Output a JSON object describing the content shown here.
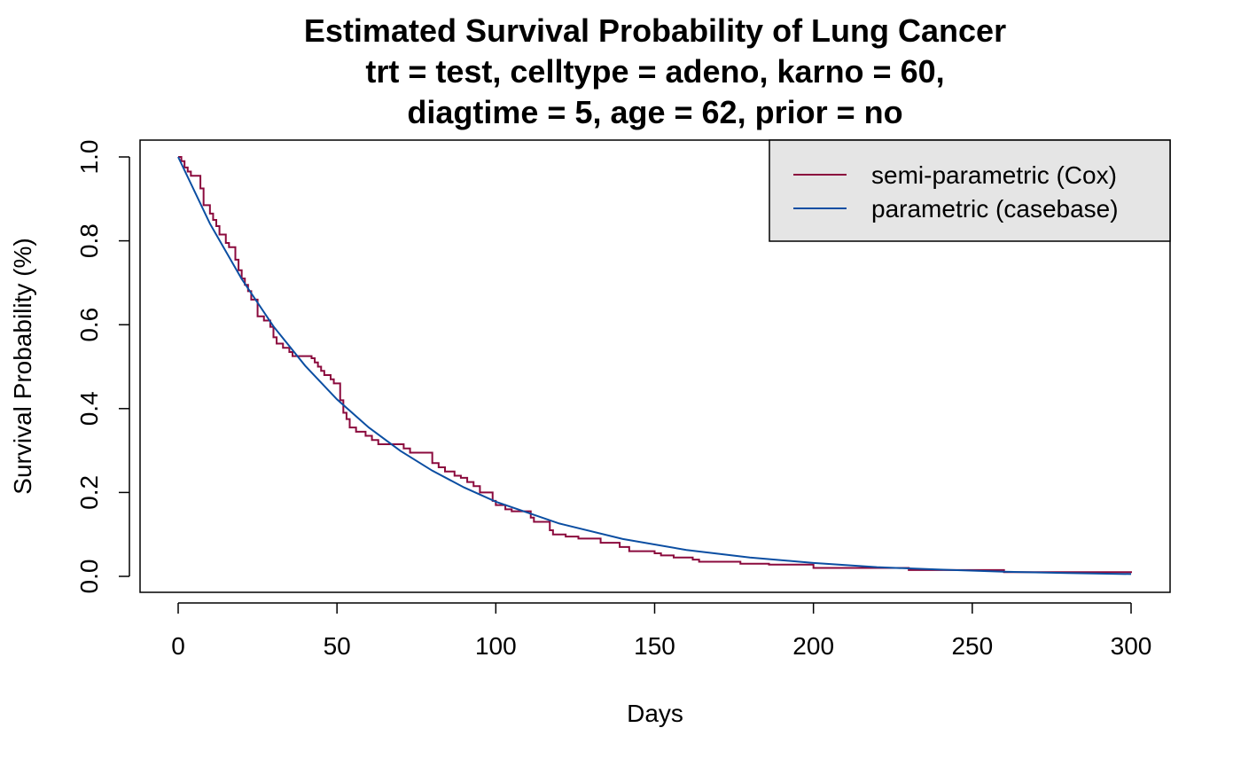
{
  "chart_data": {
    "type": "line",
    "title": "Estimated Survival Probability of Lung Cancer",
    "subtitle_lines": [
      "trt = test, celltype = adeno, karno = 60,",
      "diagtime = 5, age = 62, prior = no"
    ],
    "xlabel": "Days",
    "ylabel": "Survival Probability (%)",
    "xlim": [
      0,
      300
    ],
    "ylim": [
      0,
      1
    ],
    "x_ticks": [
      0,
      50,
      100,
      150,
      200,
      250,
      300
    ],
    "x_tick_labels": [
      "0",
      "50",
      "100",
      "150",
      "200",
      "250",
      "300"
    ],
    "y_ticks": [
      0,
      0.2,
      0.4,
      0.6,
      0.8,
      1.0
    ],
    "y_tick_labels": [
      "0.0",
      "0.2",
      "0.4",
      "0.6",
      "0.8",
      "1.0"
    ],
    "grid": false,
    "legend": {
      "position": "top-right",
      "background": "#e5e5e5",
      "entries": [
        "semi-parametric (Cox)",
        "parametric (casebase)"
      ]
    },
    "series": [
      {
        "name": "semi-parametric (Cox)",
        "style": "step",
        "color": "#8b0a3d",
        "x": [
          0,
          1,
          2,
          3,
          4,
          7,
          8,
          10,
          11,
          12,
          13,
          15,
          16,
          18,
          19,
          20,
          21,
          22,
          23,
          25,
          27,
          29,
          30,
          31,
          33,
          35,
          36,
          39,
          42,
          43,
          44,
          45,
          46,
          48,
          49,
          51,
          52,
          53,
          54,
          56,
          59,
          61,
          63,
          71,
          73,
          80,
          82,
          84,
          87,
          89,
          91,
          93,
          95,
          99,
          100,
          103,
          105,
          111,
          112,
          117,
          118,
          122,
          126,
          133,
          139,
          142,
          150,
          152,
          156,
          162,
          164,
          177,
          186,
          200,
          230,
          260,
          300
        ],
        "y": [
          1.0,
          0.99,
          0.975,
          0.965,
          0.955,
          0.925,
          0.885,
          0.865,
          0.85,
          0.835,
          0.815,
          0.795,
          0.785,
          0.755,
          0.73,
          0.71,
          0.695,
          0.68,
          0.66,
          0.62,
          0.61,
          0.595,
          0.57,
          0.555,
          0.545,
          0.535,
          0.525,
          0.525,
          0.52,
          0.51,
          0.5,
          0.49,
          0.48,
          0.47,
          0.46,
          0.42,
          0.39,
          0.375,
          0.355,
          0.345,
          0.335,
          0.325,
          0.315,
          0.305,
          0.295,
          0.27,
          0.26,
          0.25,
          0.24,
          0.235,
          0.225,
          0.215,
          0.2,
          0.18,
          0.17,
          0.16,
          0.155,
          0.14,
          0.13,
          0.11,
          0.1,
          0.095,
          0.09,
          0.08,
          0.07,
          0.06,
          0.055,
          0.05,
          0.045,
          0.04,
          0.035,
          0.03,
          0.028,
          0.02,
          0.015,
          0.01,
          0.008
        ]
      },
      {
        "name": "parametric (casebase)",
        "style": "smooth",
        "color": "#0b4ea2",
        "x": [
          0,
          10,
          20,
          30,
          40,
          50,
          60,
          70,
          80,
          90,
          100,
          120,
          140,
          160,
          180,
          200,
          220,
          240,
          260,
          280,
          300
        ],
        "y": [
          1.0,
          0.841,
          0.709,
          0.596,
          0.502,
          0.422,
          0.355,
          0.299,
          0.252,
          0.212,
          0.178,
          0.126,
          0.089,
          0.063,
          0.045,
          0.032,
          0.022,
          0.016,
          0.011,
          0.008,
          0.0055
        ]
      }
    ]
  }
}
